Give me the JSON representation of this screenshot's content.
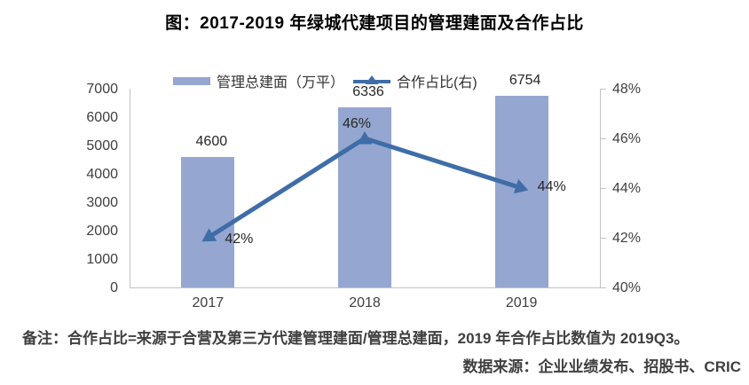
{
  "title": "图：2017-2019 年绿城代建项目的管理建面及合作占比",
  "chart_data": {
    "type": "bar",
    "combo": "bar+line",
    "categories": [
      "2017",
      "2018",
      "2019"
    ],
    "series": [
      {
        "name": "管理总建面（万平）",
        "type": "bar",
        "axis": "left",
        "values": [
          4600,
          6336,
          6754
        ]
      },
      {
        "name": "合作占比(右)",
        "type": "line",
        "axis": "right",
        "values": [
          42,
          46,
          44
        ],
        "unit": "%"
      }
    ],
    "data_labels": {
      "bar": [
        "4600",
        "6336",
        "6754"
      ],
      "line": [
        "42%",
        "46%",
        "44%"
      ]
    },
    "left_axis": {
      "min": 0,
      "max": 7000,
      "step": 1000,
      "ticks": [
        "7000",
        "6000",
        "5000",
        "4000",
        "3000",
        "2000",
        "1000",
        "0"
      ]
    },
    "right_axis": {
      "min": 40,
      "max": 48,
      "step": 2,
      "ticks": [
        "48%",
        "46%",
        "44%",
        "42%",
        "40%"
      ]
    },
    "legend_position": "top",
    "gridlines": false
  },
  "notes": {
    "line1": "备注：合作占比=来源于合营及第三方代建管理建面/管理总建面，2019 年合作占比数值为 2019Q3。",
    "line2": "数据来源：企业业绩发布、招股书、CRIC"
  },
  "colors": {
    "bar": "#95A7D0",
    "line": "#3E6DA8",
    "axis": "#C3C3C3"
  }
}
